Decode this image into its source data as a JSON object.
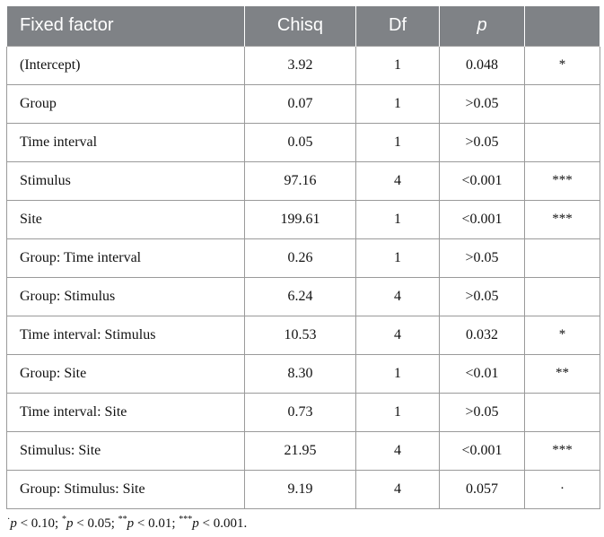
{
  "table": {
    "headers": [
      "Fixed factor",
      "Chisq",
      "Df",
      "p",
      ""
    ],
    "rows": [
      {
        "factor": "(Intercept)",
        "chisq": "3.92",
        "df": "1",
        "p": "0.048",
        "sig": "*"
      },
      {
        "factor": "Group",
        "chisq": "0.07",
        "df": "1",
        "p": ">0.05",
        "sig": ""
      },
      {
        "factor": "Time interval",
        "chisq": "0.05",
        "df": "1",
        "p": ">0.05",
        "sig": ""
      },
      {
        "factor": "Stimulus",
        "chisq": "97.16",
        "df": "4",
        "p": "<0.001",
        "sig": "***"
      },
      {
        "factor": "Site",
        "chisq": "199.61",
        "df": "1",
        "p": "<0.001",
        "sig": "***"
      },
      {
        "factor": "Group: Time interval",
        "chisq": "0.26",
        "df": "1",
        "p": ">0.05",
        "sig": ""
      },
      {
        "factor": "Group: Stimulus",
        "chisq": "6.24",
        "df": "4",
        "p": ">0.05",
        "sig": ""
      },
      {
        "factor": "Time interval: Stimulus",
        "chisq": "10.53",
        "df": "4",
        "p": "0.032",
        "sig": "*"
      },
      {
        "factor": "Group: Site",
        "chisq": "8.30",
        "df": "1",
        "p": "<0.01",
        "sig": "**"
      },
      {
        "factor": "Time interval: Site",
        "chisq": "0.73",
        "df": "1",
        "p": ">0.05",
        "sig": ""
      },
      {
        "factor": "Stimulus: Site",
        "chisq": "21.95",
        "df": "4",
        "p": "<0.001",
        "sig": "***"
      },
      {
        "factor": "Group: Stimulus: Site",
        "chisq": "9.19",
        "df": "4",
        "p": "0.057",
        "sig": "·"
      }
    ]
  },
  "footnote": {
    "items": [
      {
        "symbol": "·",
        "label": "p",
        "rest": " < 0.10; "
      },
      {
        "symbol": "*",
        "label": "p",
        "rest": " < 0.05; "
      },
      {
        "symbol": "**",
        "label": "p",
        "rest": " < 0.01; "
      },
      {
        "symbol": "***",
        "label": "p",
        "rest": " < 0.001."
      }
    ]
  }
}
